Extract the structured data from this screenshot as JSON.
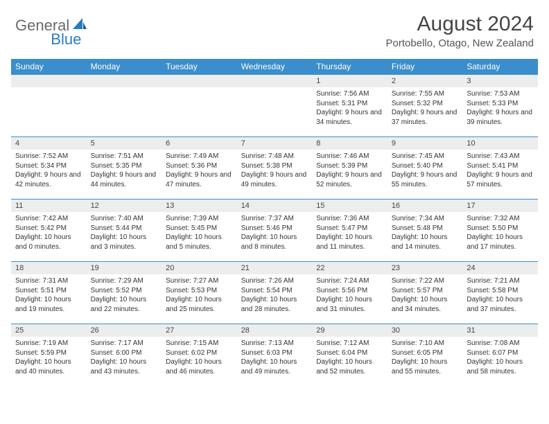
{
  "logo": {
    "text1": "General",
    "text2": "Blue"
  },
  "title": "August 2024",
  "location": "Portobello, Otago, New Zealand",
  "columns": [
    "Sunday",
    "Monday",
    "Tuesday",
    "Wednesday",
    "Thursday",
    "Friday",
    "Saturday"
  ],
  "colors": {
    "header_bg": "#3b8ecb",
    "header_text": "#ffffff",
    "daynum_bg": "#eceded",
    "border": "#3b8ecb",
    "logo_gray": "#6a6a6a",
    "logo_blue": "#2a7cc0"
  },
  "weeks": [
    [
      null,
      null,
      null,
      null,
      {
        "n": "1",
        "sr": "7:56 AM",
        "ss": "5:31 PM",
        "dl": "9 hours and 34 minutes."
      },
      {
        "n": "2",
        "sr": "7:55 AM",
        "ss": "5:32 PM",
        "dl": "9 hours and 37 minutes."
      },
      {
        "n": "3",
        "sr": "7:53 AM",
        "ss": "5:33 PM",
        "dl": "9 hours and 39 minutes."
      }
    ],
    [
      {
        "n": "4",
        "sr": "7:52 AM",
        "ss": "5:34 PM",
        "dl": "9 hours and 42 minutes."
      },
      {
        "n": "5",
        "sr": "7:51 AM",
        "ss": "5:35 PM",
        "dl": "9 hours and 44 minutes."
      },
      {
        "n": "6",
        "sr": "7:49 AM",
        "ss": "5:36 PM",
        "dl": "9 hours and 47 minutes."
      },
      {
        "n": "7",
        "sr": "7:48 AM",
        "ss": "5:38 PM",
        "dl": "9 hours and 49 minutes."
      },
      {
        "n": "8",
        "sr": "7:46 AM",
        "ss": "5:39 PM",
        "dl": "9 hours and 52 minutes."
      },
      {
        "n": "9",
        "sr": "7:45 AM",
        "ss": "5:40 PM",
        "dl": "9 hours and 55 minutes."
      },
      {
        "n": "10",
        "sr": "7:43 AM",
        "ss": "5:41 PM",
        "dl": "9 hours and 57 minutes."
      }
    ],
    [
      {
        "n": "11",
        "sr": "7:42 AM",
        "ss": "5:42 PM",
        "dl": "10 hours and 0 minutes."
      },
      {
        "n": "12",
        "sr": "7:40 AM",
        "ss": "5:44 PM",
        "dl": "10 hours and 3 minutes."
      },
      {
        "n": "13",
        "sr": "7:39 AM",
        "ss": "5:45 PM",
        "dl": "10 hours and 5 minutes."
      },
      {
        "n": "14",
        "sr": "7:37 AM",
        "ss": "5:46 PM",
        "dl": "10 hours and 8 minutes."
      },
      {
        "n": "15",
        "sr": "7:36 AM",
        "ss": "5:47 PM",
        "dl": "10 hours and 11 minutes."
      },
      {
        "n": "16",
        "sr": "7:34 AM",
        "ss": "5:48 PM",
        "dl": "10 hours and 14 minutes."
      },
      {
        "n": "17",
        "sr": "7:32 AM",
        "ss": "5:50 PM",
        "dl": "10 hours and 17 minutes."
      }
    ],
    [
      {
        "n": "18",
        "sr": "7:31 AM",
        "ss": "5:51 PM",
        "dl": "10 hours and 19 minutes."
      },
      {
        "n": "19",
        "sr": "7:29 AM",
        "ss": "5:52 PM",
        "dl": "10 hours and 22 minutes."
      },
      {
        "n": "20",
        "sr": "7:27 AM",
        "ss": "5:53 PM",
        "dl": "10 hours and 25 minutes."
      },
      {
        "n": "21",
        "sr": "7:26 AM",
        "ss": "5:54 PM",
        "dl": "10 hours and 28 minutes."
      },
      {
        "n": "22",
        "sr": "7:24 AM",
        "ss": "5:56 PM",
        "dl": "10 hours and 31 minutes."
      },
      {
        "n": "23",
        "sr": "7:22 AM",
        "ss": "5:57 PM",
        "dl": "10 hours and 34 minutes."
      },
      {
        "n": "24",
        "sr": "7:21 AM",
        "ss": "5:58 PM",
        "dl": "10 hours and 37 minutes."
      }
    ],
    [
      {
        "n": "25",
        "sr": "7:19 AM",
        "ss": "5:59 PM",
        "dl": "10 hours and 40 minutes."
      },
      {
        "n": "26",
        "sr": "7:17 AM",
        "ss": "6:00 PM",
        "dl": "10 hours and 43 minutes."
      },
      {
        "n": "27",
        "sr": "7:15 AM",
        "ss": "6:02 PM",
        "dl": "10 hours and 46 minutes."
      },
      {
        "n": "28",
        "sr": "7:13 AM",
        "ss": "6:03 PM",
        "dl": "10 hours and 49 minutes."
      },
      {
        "n": "29",
        "sr": "7:12 AM",
        "ss": "6:04 PM",
        "dl": "10 hours and 52 minutes."
      },
      {
        "n": "30",
        "sr": "7:10 AM",
        "ss": "6:05 PM",
        "dl": "10 hours and 55 minutes."
      },
      {
        "n": "31",
        "sr": "7:08 AM",
        "ss": "6:07 PM",
        "dl": "10 hours and 58 minutes."
      }
    ]
  ],
  "labels": {
    "sunrise": "Sunrise:",
    "sunset": "Sunset:",
    "daylight": "Daylight:"
  }
}
